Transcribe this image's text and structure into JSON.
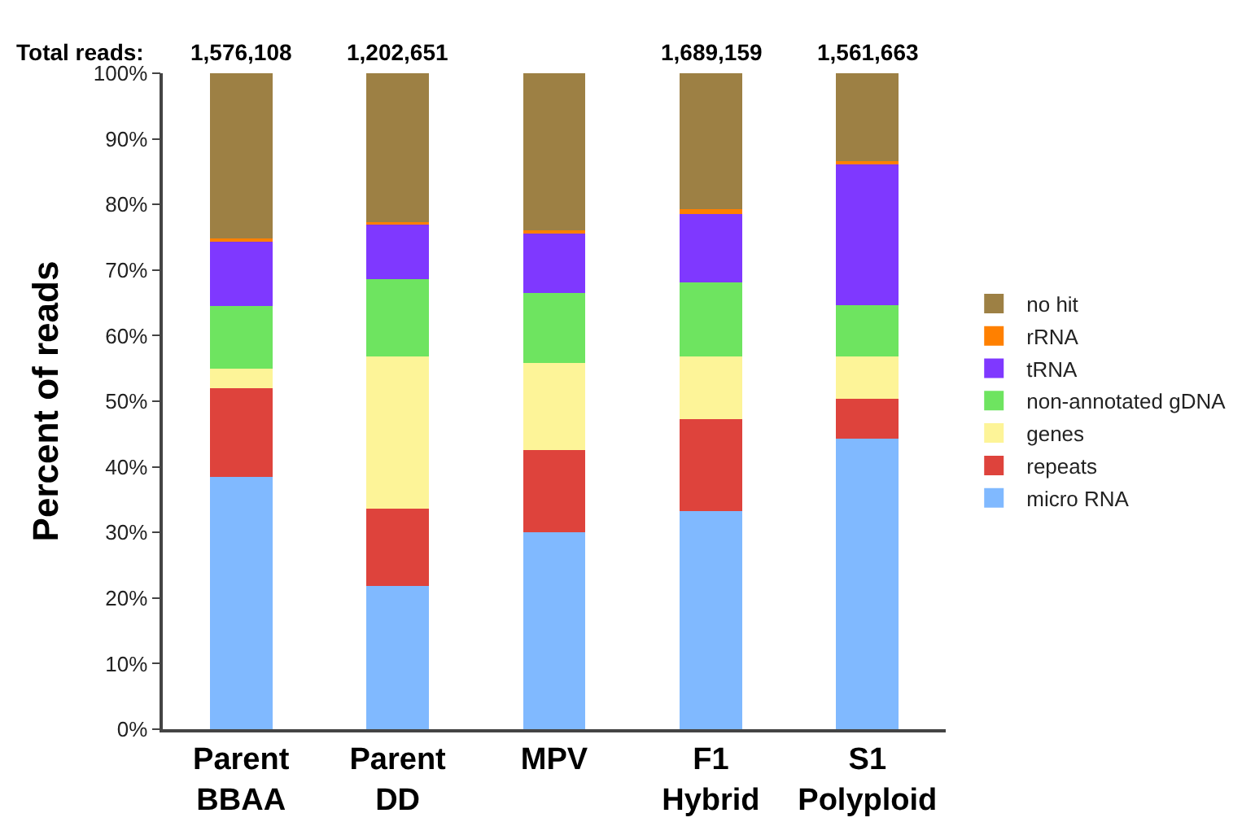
{
  "chart_data": {
    "type": "bar",
    "stacked": true,
    "ylabel": "Percent of reads",
    "categories": [
      "Parent\nBBAA",
      "Parent\nDD",
      "MPV",
      "F1\nHybrid",
      "S1\nPolyploid"
    ],
    "series": [
      {
        "name": "micro RNA",
        "color": "#80b9ff",
        "values": [
          38.5,
          21.8,
          30.0,
          33.2,
          44.3
        ]
      },
      {
        "name": "repeats",
        "color": "#de433c",
        "values": [
          13.5,
          11.8,
          12.6,
          14.1,
          6.1
        ]
      },
      {
        "name": "genes",
        "color": "#fdf498",
        "values": [
          3.0,
          23.2,
          13.2,
          9.5,
          6.4
        ]
      },
      {
        "name": "non-annotated gDNA",
        "color": "#6ee460",
        "values": [
          9.5,
          11.8,
          10.7,
          11.3,
          7.9
        ]
      },
      {
        "name": "tRNA",
        "color": "#7f38ff",
        "values": [
          9.8,
          8.4,
          9.1,
          10.4,
          21.4
        ]
      },
      {
        "name": "rRNA",
        "color": "#ff8000",
        "values": [
          0.5,
          0.3,
          0.5,
          0.8,
          0.5
        ]
      },
      {
        "name": "no hit",
        "color": "#9d8044",
        "values": [
          25.2,
          22.7,
          23.9,
          20.7,
          13.4
        ]
      }
    ],
    "ylim": [
      0,
      100
    ],
    "yticks": [
      {
        "value": 0,
        "label": "0%"
      },
      {
        "value": 10,
        "label": "10%"
      },
      {
        "value": 20,
        "label": "20%"
      },
      {
        "value": 30,
        "label": "30%"
      },
      {
        "value": 40,
        "label": "40%"
      },
      {
        "value": 50,
        "label": "50%"
      },
      {
        "value": 60,
        "label": "60%"
      },
      {
        "value": 70,
        "label": "70%"
      },
      {
        "value": 80,
        "label": "80%"
      },
      {
        "value": 90,
        "label": "90%"
      },
      {
        "value": 100,
        "label": "100%"
      }
    ],
    "annotations": [
      "Total reads:",
      {
        "text": "1,576,108",
        "x": "Parent\nBBAA",
        "y": 100
      },
      {
        "text": "1,202,651",
        "x": "Parent\nDD",
        "y": 100
      },
      {
        "text": "1,689,159",
        "x": "F1\nHybrid",
        "y": 100
      },
      {
        "text": "1,561,663",
        "x": "S1\nPolyploid",
        "y": 100
      }
    ],
    "legend": "right"
  }
}
